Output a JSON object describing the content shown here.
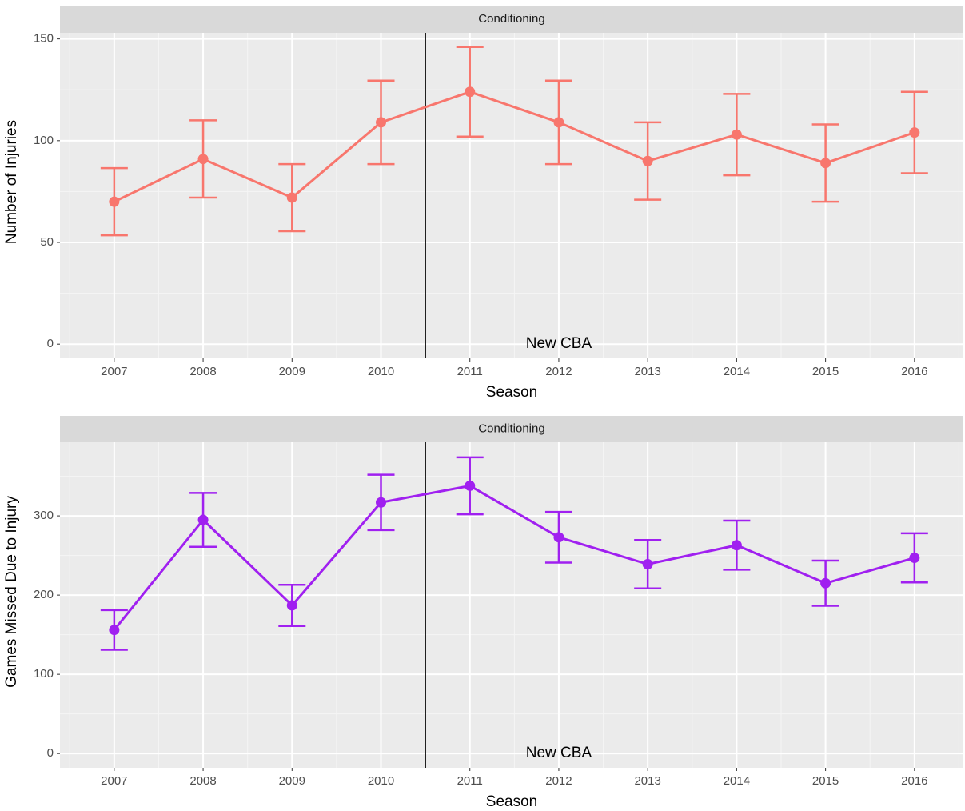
{
  "chart_data": [
    {
      "type": "line",
      "facet": "Conditioning",
      "x_label": "Season",
      "y_label": "Number of Injuries",
      "x": [
        2007,
        2008,
        2009,
        2010,
        2011,
        2012,
        2013,
        2014,
        2015,
        2016
      ],
      "values": [
        70,
        91,
        72,
        109,
        124,
        109,
        90,
        103,
        89,
        104
      ],
      "errors": [
        16.5,
        19,
        16.5,
        20.5,
        22,
        20.5,
        19,
        20,
        19,
        20
      ],
      "color": "#f8766d",
      "xlim": [
        2006.39,
        2016.55
      ],
      "xticks": [
        2007,
        2008,
        2009,
        2010,
        2011,
        2012,
        2013,
        2014,
        2015,
        2016
      ],
      "ylim": [
        -7,
        153
      ],
      "yticks": [
        0,
        50,
        100,
        150
      ],
      "vline": 2010.5,
      "annotation": {
        "text": "New CBA",
        "x": 2012,
        "y": 0
      },
      "grid": true
    },
    {
      "type": "line",
      "facet": "Conditioning",
      "x_label": "Season",
      "y_label": "Games Missed Due to Injury",
      "x": [
        2007,
        2008,
        2009,
        2010,
        2011,
        2012,
        2013,
        2014,
        2015,
        2016
      ],
      "values": [
        156,
        295,
        187,
        317,
        338,
        273,
        239,
        263,
        215,
        247
      ],
      "errors": [
        25,
        34,
        26,
        35,
        36,
        32,
        30.5,
        31,
        28.5,
        31
      ],
      "color": "#a020f0",
      "xlim": [
        2006.39,
        2016.55
      ],
      "xticks": [
        2007,
        2008,
        2009,
        2010,
        2011,
        2012,
        2013,
        2014,
        2015,
        2016
      ],
      "ylim": [
        -18,
        393
      ],
      "yticks": [
        0,
        100,
        200,
        300
      ],
      "vline": 2010.5,
      "annotation": {
        "text": "New CBA",
        "x": 2012,
        "y": 0
      },
      "grid": true
    }
  ]
}
